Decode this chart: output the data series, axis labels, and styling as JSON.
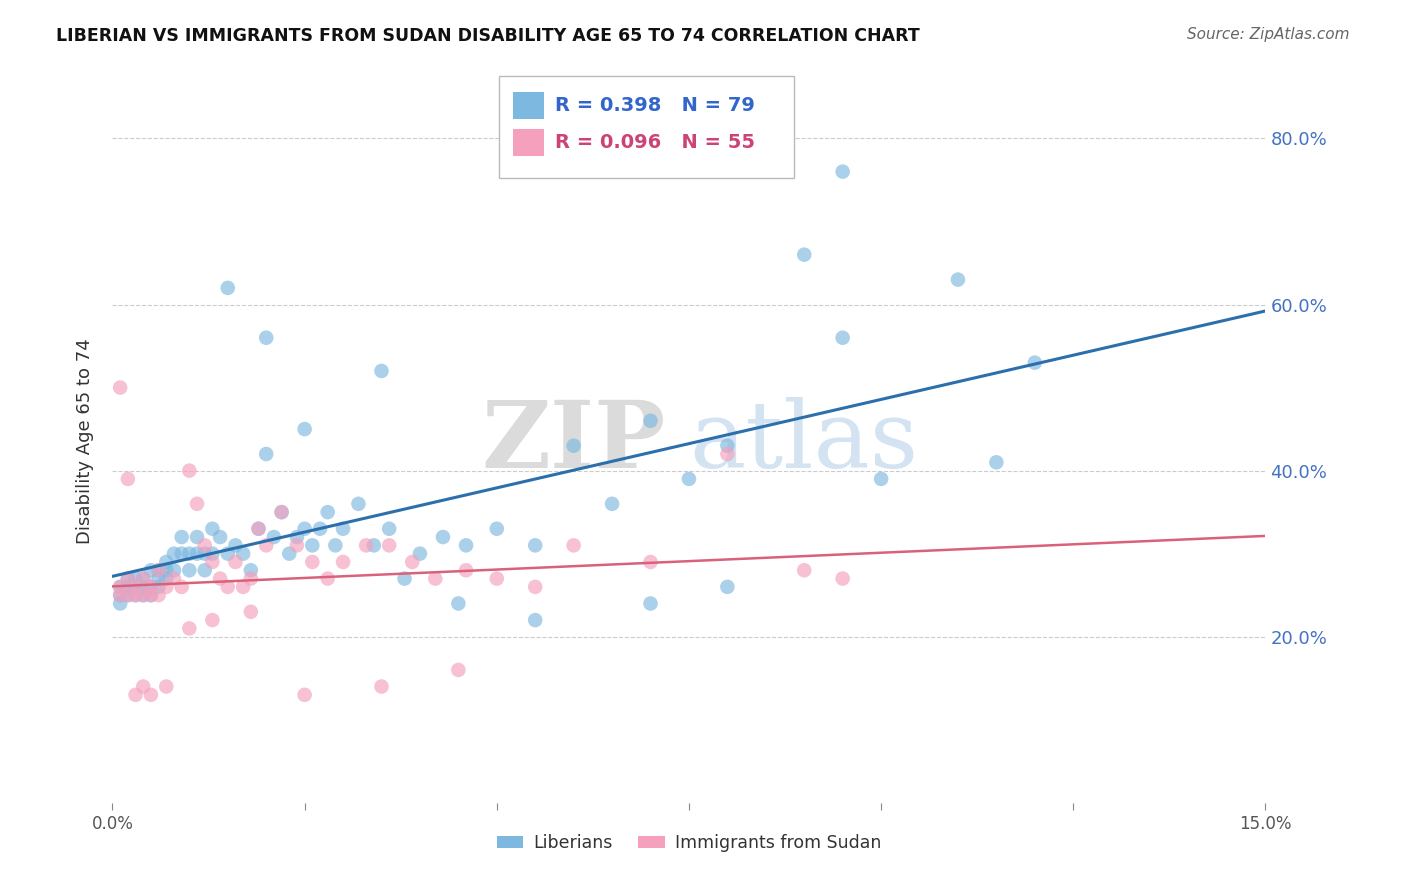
{
  "title": "LIBERIAN VS IMMIGRANTS FROM SUDAN DISABILITY AGE 65 TO 74 CORRELATION CHART",
  "source": "Source: ZipAtlas.com",
  "ylabel": "Disability Age 65 to 74",
  "legend_label_1": "Liberians",
  "legend_label_2": "Immigrants from Sudan",
  "R1": 0.398,
  "N1": 79,
  "R2": 0.096,
  "N2": 55,
  "color1": "#7db8e0",
  "color2": "#f5a0bc",
  "color1_line": "#2c6fad",
  "color2_line": "#d9627a",
  "watermark_zip": "ZIP",
  "watermark_atlas": "atlas",
  "xlim": [
    0.0,
    0.15
  ],
  "ylim": [
    0.0,
    0.87
  ],
  "blue_x": [
    0.001,
    0.001,
    0.001,
    0.002,
    0.002,
    0.002,
    0.003,
    0.003,
    0.003,
    0.004,
    0.004,
    0.004,
    0.005,
    0.005,
    0.005,
    0.006,
    0.006,
    0.006,
    0.007,
    0.007,
    0.007,
    0.008,
    0.008,
    0.009,
    0.009,
    0.01,
    0.01,
    0.011,
    0.011,
    0.012,
    0.012,
    0.013,
    0.013,
    0.014,
    0.015,
    0.016,
    0.017,
    0.018,
    0.019,
    0.02,
    0.021,
    0.022,
    0.023,
    0.024,
    0.025,
    0.026,
    0.027,
    0.028,
    0.029,
    0.03,
    0.032,
    0.034,
    0.036,
    0.038,
    0.04,
    0.043,
    0.046,
    0.05,
    0.055,
    0.06,
    0.065,
    0.07,
    0.075,
    0.08,
    0.09,
    0.095,
    0.1,
    0.11,
    0.115,
    0.12,
    0.015,
    0.02,
    0.025,
    0.035,
    0.045,
    0.055,
    0.07,
    0.08,
    0.095
  ],
  "blue_y": [
    0.25,
    0.26,
    0.24,
    0.27,
    0.25,
    0.26,
    0.26,
    0.25,
    0.27,
    0.25,
    0.27,
    0.26,
    0.28,
    0.26,
    0.25,
    0.28,
    0.26,
    0.27,
    0.29,
    0.28,
    0.27,
    0.3,
    0.28,
    0.32,
    0.3,
    0.3,
    0.28,
    0.32,
    0.3,
    0.3,
    0.28,
    0.33,
    0.3,
    0.32,
    0.3,
    0.31,
    0.3,
    0.28,
    0.33,
    0.42,
    0.32,
    0.35,
    0.3,
    0.32,
    0.33,
    0.31,
    0.33,
    0.35,
    0.31,
    0.33,
    0.36,
    0.31,
    0.33,
    0.27,
    0.3,
    0.32,
    0.31,
    0.33,
    0.31,
    0.43,
    0.36,
    0.46,
    0.39,
    0.43,
    0.66,
    0.56,
    0.39,
    0.63,
    0.41,
    0.53,
    0.62,
    0.56,
    0.45,
    0.52,
    0.24,
    0.22,
    0.24,
    0.26,
    0.76
  ],
  "pink_x": [
    0.001,
    0.001,
    0.002,
    0.002,
    0.003,
    0.003,
    0.004,
    0.004,
    0.005,
    0.005,
    0.006,
    0.006,
    0.007,
    0.008,
    0.009,
    0.01,
    0.011,
    0.012,
    0.013,
    0.014,
    0.015,
    0.016,
    0.017,
    0.018,
    0.019,
    0.02,
    0.022,
    0.024,
    0.026,
    0.028,
    0.03,
    0.033,
    0.036,
    0.039,
    0.042,
    0.046,
    0.05,
    0.055,
    0.06,
    0.07,
    0.08,
    0.09,
    0.095,
    0.001,
    0.002,
    0.003,
    0.004,
    0.005,
    0.007,
    0.01,
    0.013,
    0.018,
    0.025,
    0.035,
    0.045
  ],
  "pink_y": [
    0.26,
    0.25,
    0.27,
    0.25,
    0.26,
    0.25,
    0.27,
    0.25,
    0.26,
    0.25,
    0.28,
    0.25,
    0.26,
    0.27,
    0.26,
    0.4,
    0.36,
    0.31,
    0.29,
    0.27,
    0.26,
    0.29,
    0.26,
    0.27,
    0.33,
    0.31,
    0.35,
    0.31,
    0.29,
    0.27,
    0.29,
    0.31,
    0.31,
    0.29,
    0.27,
    0.28,
    0.27,
    0.26,
    0.31,
    0.29,
    0.42,
    0.28,
    0.27,
    0.5,
    0.39,
    0.13,
    0.14,
    0.13,
    0.14,
    0.21,
    0.22,
    0.23,
    0.13,
    0.14,
    0.16
  ]
}
